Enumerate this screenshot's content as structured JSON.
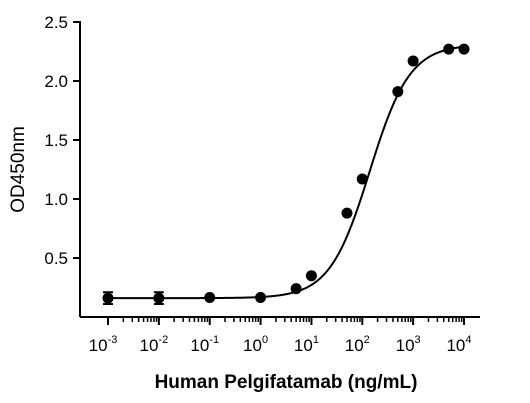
{
  "chart_data": {
    "type": "scatter",
    "title": "",
    "xlabel": "Human Pelgifatamab (ng/mL)",
    "ylabel": "OD450nm",
    "x_scale": "log",
    "xlim": [
      0.001,
      10000
    ],
    "ylim": [
      0,
      2.5
    ],
    "y_ticks": [
      {
        "value": 0.5,
        "label": "0.5"
      },
      {
        "value": 1.0,
        "label": "1.0"
      },
      {
        "value": 1.5,
        "label": "1.5"
      },
      {
        "value": 2.0,
        "label": "2.0"
      },
      {
        "value": 2.5,
        "label": "2.5"
      }
    ],
    "x_ticks": [
      {
        "value": 0.001,
        "base": "10",
        "exp": "-3"
      },
      {
        "value": 0.01,
        "base": "10",
        "exp": "-2"
      },
      {
        "value": 0.1,
        "base": "10",
        "exp": "-1"
      },
      {
        "value": 1,
        "base": "10",
        "exp": "0"
      },
      {
        "value": 10,
        "base": "10",
        "exp": "1"
      },
      {
        "value": 100,
        "base": "10",
        "exp": "2"
      },
      {
        "value": 1000,
        "base": "10",
        "exp": "3"
      },
      {
        "value": 10000,
        "base": "10",
        "exp": "4"
      }
    ],
    "grid": false,
    "legend": "none",
    "series": [
      {
        "points": [
          {
            "x": 0.001,
            "y": 0.16,
            "err": 0.05
          },
          {
            "x": 0.01,
            "y": 0.16,
            "err": 0.05
          },
          {
            "x": 0.1,
            "y": 0.165,
            "err": 0.02
          },
          {
            "x": 1,
            "y": 0.165,
            "err": 0.02
          },
          {
            "x": 5,
            "y": 0.24,
            "err": 0.02
          },
          {
            "x": 10,
            "y": 0.35,
            "err": 0.02
          },
          {
            "x": 50,
            "y": 0.88,
            "err": 0.02
          },
          {
            "x": 100,
            "y": 1.17,
            "err": 0.02
          },
          {
            "x": 500,
            "y": 1.91,
            "err": 0.02
          },
          {
            "x": 1000,
            "y": 2.17,
            "err": 0.02
          },
          {
            "x": 5000,
            "y": 2.27,
            "err": 0.02
          },
          {
            "x": 10000,
            "y": 2.27,
            "err": 0.02
          }
        ],
        "fit": {
          "model": "4PL",
          "bottom": 0.16,
          "top": 2.31,
          "ec50": 140,
          "hill": 1.1
        }
      }
    ]
  }
}
